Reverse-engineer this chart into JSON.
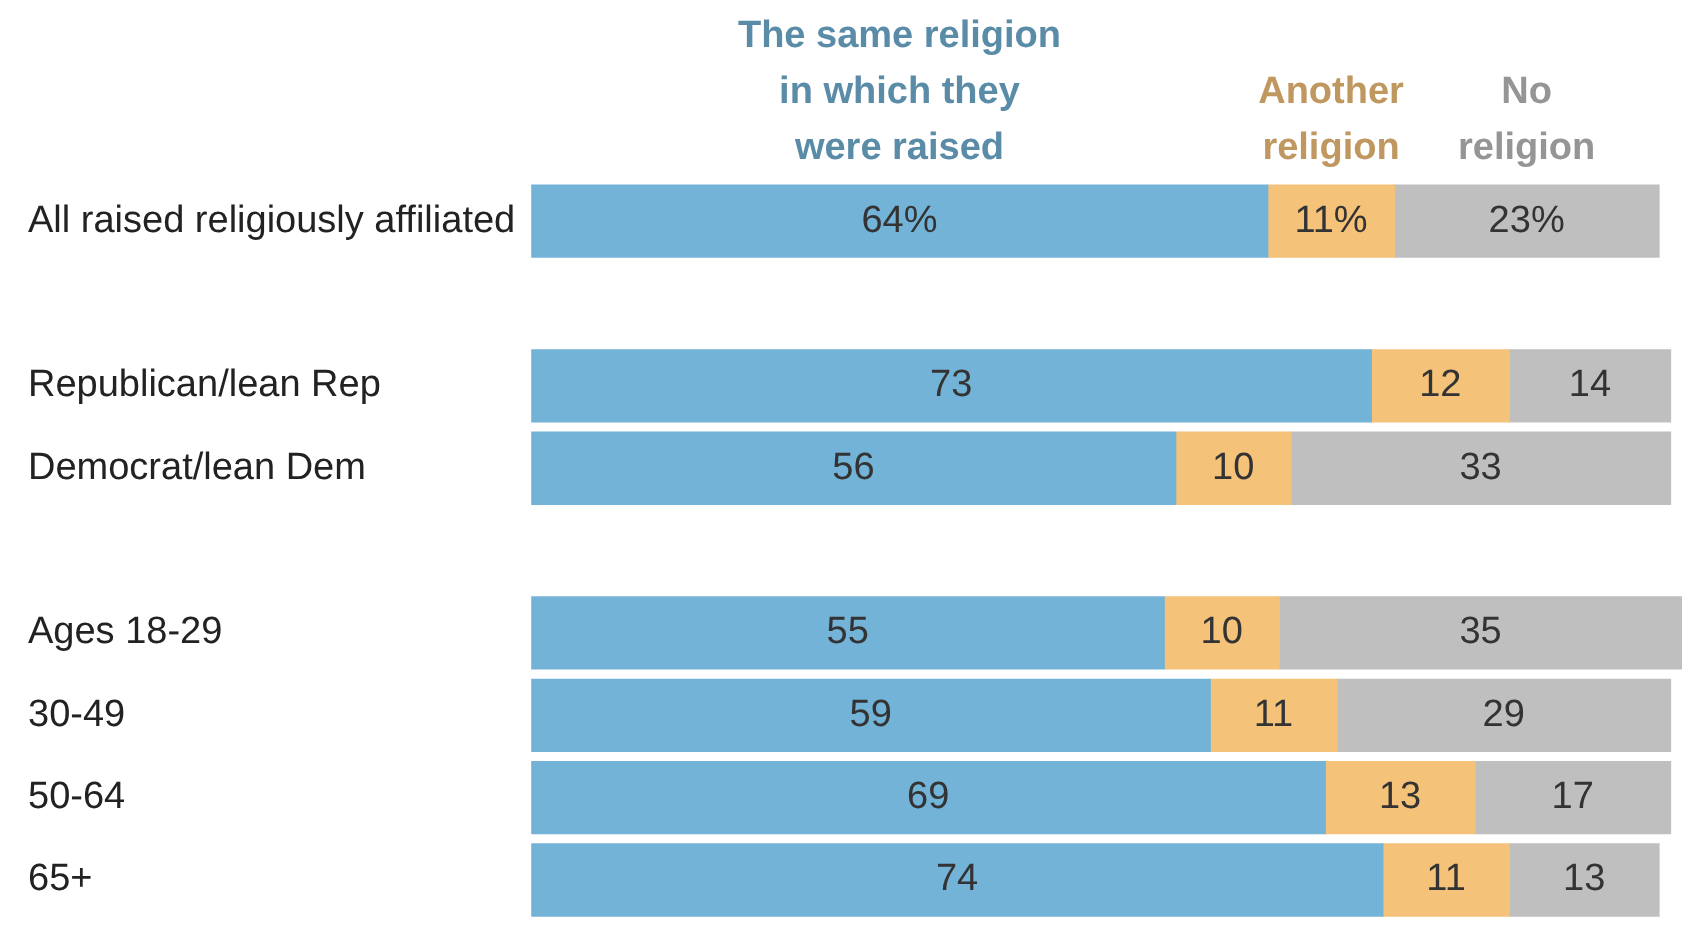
{
  "chart_data": {
    "type": "bar",
    "orientation": "horizontal",
    "stacked": true,
    "legend": "top",
    "categories": [
      "All raised religiously affiliated",
      null,
      "Republican/lean Rep",
      "Democrat/lean Dem",
      null,
      "Ages 18-29",
      "30-49",
      "50-64",
      "65+"
    ],
    "xlim": [
      0,
      100
    ],
    "series": [
      {
        "name": "The same religion\nin which they\nwere raised",
        "color": "#73b3d8",
        "values": [
          64,
          null,
          73,
          56,
          null,
          55,
          59,
          69,
          74
        ],
        "value_labels": [
          "64%",
          null,
          "73",
          "56",
          null,
          "55",
          "59",
          "69",
          "74"
        ]
      },
      {
        "name": "Another\nreligion",
        "color": "#f5c27a",
        "values": [
          11,
          null,
          12,
          10,
          null,
          10,
          11,
          13,
          11
        ],
        "value_labels": [
          "11%",
          null,
          "12",
          "10",
          null,
          "10",
          "11",
          "13",
          "11"
        ]
      },
      {
        "name": "No\nreligion",
        "color": "#bfbfbf",
        "values": [
          23,
          null,
          14,
          33,
          null,
          35,
          29,
          17,
          13
        ],
        "value_labels": [
          "23%",
          null,
          "14",
          "33",
          null,
          "35",
          "29",
          "17",
          "13"
        ]
      }
    ]
  }
}
